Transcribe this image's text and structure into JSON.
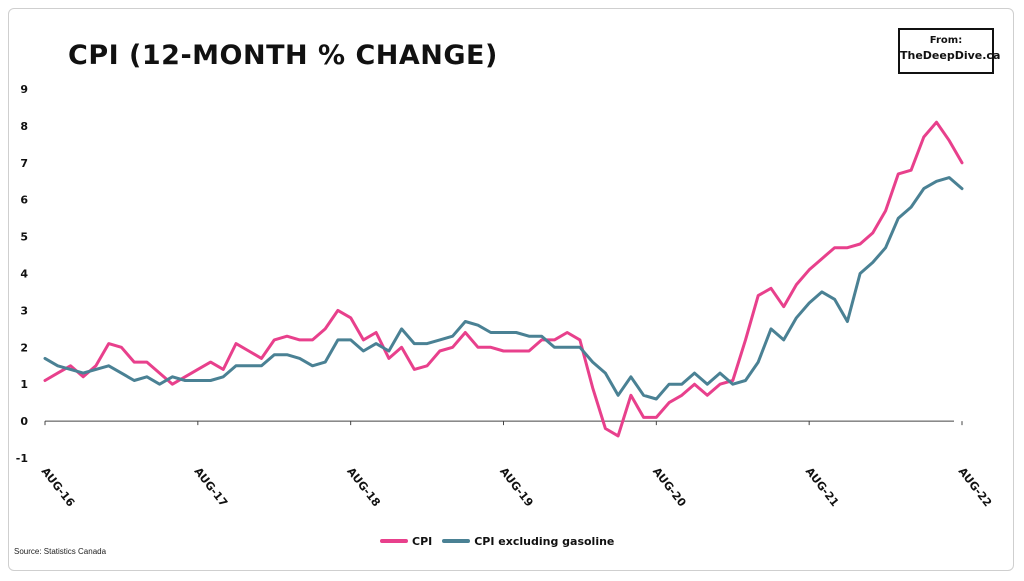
{
  "badge": {
    "line1": "From:",
    "line2": "TheDeepDive.ca"
  },
  "source": "Source: Statistics Canada",
  "colors": {
    "cpi": "#e8408c",
    "core": "#4a8194",
    "axis": "#444444",
    "text": "#111111"
  },
  "chart_data": {
    "type": "line",
    "title": "CPI (12-MONTH % CHANGE)",
    "xlabel": "",
    "ylabel": "",
    "ylim": [
      -1,
      9
    ],
    "yticks": [
      -1,
      0,
      1,
      2,
      3,
      4,
      5,
      6,
      7,
      8,
      9
    ],
    "grid": false,
    "legend_position": "bottom-center",
    "x_tick_labels": [
      "AUG-16",
      "AUG-17",
      "AUG-18",
      "AUG-19",
      "AUG-20",
      "AUG-21",
      "AUG-22"
    ],
    "x_tick_index": [
      0,
      12,
      24,
      36,
      48,
      60,
      72
    ],
    "x": [
      "Aug-16",
      "Sep-16",
      "Oct-16",
      "Nov-16",
      "Dec-16",
      "Jan-17",
      "Feb-17",
      "Mar-17",
      "Apr-17",
      "May-17",
      "Jun-17",
      "Jul-17",
      "Aug-17",
      "Sep-17",
      "Oct-17",
      "Nov-17",
      "Dec-17",
      "Jan-18",
      "Feb-18",
      "Mar-18",
      "Apr-18",
      "May-18",
      "Jun-18",
      "Jul-18",
      "Aug-18",
      "Sep-18",
      "Oct-18",
      "Nov-18",
      "Dec-18",
      "Jan-19",
      "Feb-19",
      "Mar-19",
      "Apr-19",
      "May-19",
      "Jun-19",
      "Jul-19",
      "Aug-19",
      "Sep-19",
      "Oct-19",
      "Nov-19",
      "Dec-19",
      "Jan-20",
      "Feb-20",
      "Mar-20",
      "Apr-20",
      "May-20",
      "Jun-20",
      "Jul-20",
      "Aug-20",
      "Sep-20",
      "Oct-20",
      "Nov-20",
      "Dec-20",
      "Jan-21",
      "Feb-21",
      "Mar-21",
      "Apr-21",
      "May-21",
      "Jun-21",
      "Jul-21",
      "Aug-21",
      "Sep-21",
      "Oct-21",
      "Nov-21",
      "Dec-21",
      "Jan-22",
      "Feb-22",
      "Mar-22",
      "Apr-22",
      "May-22",
      "Jun-22",
      "Jul-22",
      "Aug-22"
    ],
    "series": [
      {
        "name": "CPI",
        "values": [
          1.1,
          1.3,
          1.5,
          1.2,
          1.5,
          2.1,
          2.0,
          1.6,
          1.6,
          1.3,
          1.0,
          1.2,
          1.4,
          1.6,
          1.4,
          2.1,
          1.9,
          1.7,
          2.2,
          2.3,
          2.2,
          2.2,
          2.5,
          3.0,
          2.8,
          2.2,
          2.4,
          1.7,
          2.0,
          1.4,
          1.5,
          1.9,
          2.0,
          2.4,
          2.0,
          2.0,
          1.9,
          1.9,
          1.9,
          2.2,
          2.2,
          2.4,
          2.2,
          0.9,
          -0.2,
          -0.4,
          0.7,
          0.1,
          0.1,
          0.5,
          0.7,
          1.0,
          0.7,
          1.0,
          1.1,
          2.2,
          3.4,
          3.6,
          3.1,
          3.7,
          4.1,
          4.4,
          4.7,
          4.7,
          4.8,
          5.1,
          5.7,
          6.7,
          6.8,
          7.7,
          8.1,
          7.6,
          7.0
        ]
      },
      {
        "name": "CPI excluding gasoline",
        "values": [
          1.7,
          1.5,
          1.4,
          1.3,
          1.4,
          1.5,
          1.3,
          1.1,
          1.2,
          1.0,
          1.2,
          1.1,
          1.1,
          1.1,
          1.2,
          1.5,
          1.5,
          1.5,
          1.8,
          1.8,
          1.7,
          1.5,
          1.6,
          2.2,
          2.2,
          1.9,
          2.1,
          1.9,
          2.5,
          2.1,
          2.1,
          2.2,
          2.3,
          2.7,
          2.6,
          2.4,
          2.4,
          2.4,
          2.3,
          2.3,
          2.0,
          2.0,
          2.0,
          1.6,
          1.3,
          0.7,
          1.2,
          0.7,
          0.6,
          1.0,
          1.0,
          1.3,
          1.0,
          1.3,
          1.0,
          1.1,
          1.6,
          2.5,
          2.2,
          2.8,
          3.2,
          3.5,
          3.3,
          2.7,
          4.0,
          4.3,
          4.7,
          5.5,
          5.8,
          6.3,
          6.5,
          6.6,
          6.3
        ]
      }
    ]
  }
}
